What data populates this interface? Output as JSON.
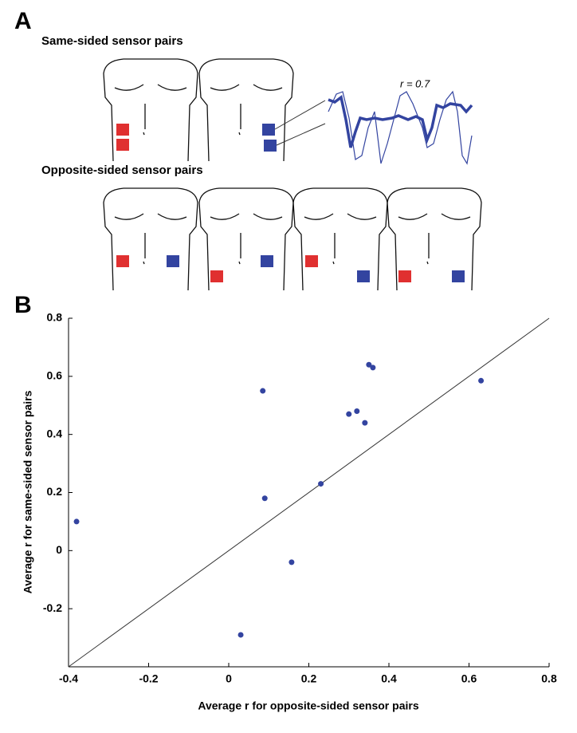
{
  "panel_a": {
    "label": "A",
    "same_title": "Same-sided sensor pairs",
    "opposite_title": "Opposite-sided sensor pairs",
    "annotation": "r = 0.7"
  },
  "panel_b": {
    "label": "B"
  },
  "chart_data": {
    "type": "scatter",
    "color": "#3344a0",
    "x_label": "Average  r  for opposite-sided sensor pairs",
    "y_label": "Average  r  for same-sided sensor pairs",
    "x": [
      -0.38,
      0.085,
      0.09,
      0.03,
      0.157,
      0.23,
      0.3,
      0.32,
      0.34,
      0.35,
      0.36,
      0.63
    ],
    "values": [
      0.1,
      0.55,
      0.18,
      -0.29,
      -0.04,
      0.23,
      0.47,
      0.48,
      0.44,
      0.64,
      0.63,
      0.585
    ],
    "xlim": [
      -0.4,
      0.8
    ],
    "ylim": [
      -0.4,
      0.8
    ],
    "xticks": [
      -0.4,
      -0.2,
      0,
      0.2,
      0.4,
      0.6,
      0.8
    ],
    "yticks": [
      -0.2,
      0,
      0.2,
      0.4,
      0.6,
      0.8
    ],
    "identity_line": true
  }
}
